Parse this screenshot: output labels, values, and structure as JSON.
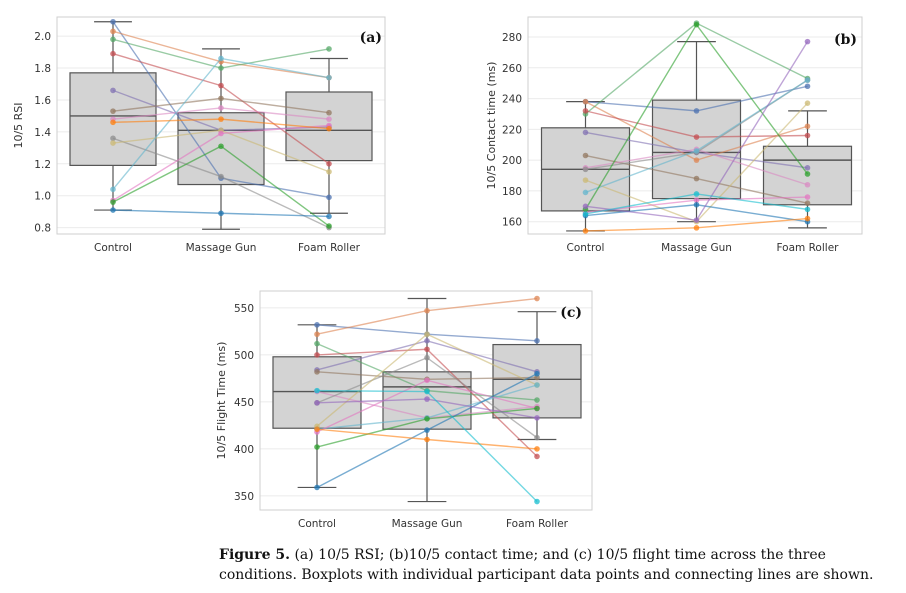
{
  "caption": {
    "label": "Figure 5.",
    "text": "(a) 10/5 RSI; (b)10/5 contact time; and (c) 10/5 flight time across the three conditions. Boxplots with individual participant data points and connecting lines are shown."
  },
  "chart_data": [
    {
      "type": "box",
      "panel": "(a)",
      "ylabel": "10/5 RSI",
      "categories": [
        "Control",
        "Massage Gun",
        "Foam Roller"
      ],
      "ylim": [
        0.76,
        2.12
      ],
      "yticks": [
        0.8,
        1.0,
        1.2,
        1.4,
        1.6,
        1.8,
        2.0
      ],
      "boxes": [
        {
          "q1": 1.19,
          "median": 1.5,
          "q3": 1.77,
          "whislo": 0.91,
          "whishi": 2.09
        },
        {
          "q1": 1.07,
          "median": 1.41,
          "q3": 1.52,
          "whislo": 0.79,
          "whishi": 1.92
        },
        {
          "q1": 1.22,
          "median": 1.41,
          "q3": 1.65,
          "whislo": 0.89,
          "whishi": 1.86
        }
      ],
      "participants": [
        [
          2.09,
          1.11,
          0.99
        ],
        [
          2.03,
          1.84,
          1.74
        ],
        [
          1.98,
          1.8,
          1.92
        ],
        [
          1.89,
          1.69,
          1.2
        ],
        [
          1.66,
          1.41,
          1.43
        ],
        [
          1.53,
          1.61,
          1.52
        ],
        [
          1.48,
          1.55,
          1.48
        ],
        [
          1.36,
          1.12,
          0.8
        ],
        [
          1.33,
          1.41,
          1.15
        ],
        [
          1.04,
          1.86,
          1.74
        ],
        [
          0.97,
          1.39,
          1.44
        ],
        [
          0.96,
          1.31,
          0.81
        ],
        [
          0.91,
          0.89,
          0.87
        ],
        [
          1.46,
          1.48,
          1.42
        ]
      ]
    },
    {
      "type": "box",
      "panel": "(b)",
      "ylabel": "10/5 Contact time (ms)",
      "categories": [
        "Control",
        "Massage Gun",
        "Foam Roller"
      ],
      "ylim": [
        152,
        293
      ],
      "yticks": [
        160,
        180,
        200,
        220,
        240,
        260,
        280
      ],
      "boxes": [
        {
          "q1": 167,
          "median": 194,
          "q3": 221,
          "whislo": 154,
          "whishi": 238
        },
        {
          "q1": 175,
          "median": 205,
          "q3": 239,
          "whislo": 160,
          "whishi": 277
        },
        {
          "q1": 171,
          "median": 200,
          "q3": 209,
          "whislo": 156,
          "whishi": 232
        }
      ],
      "participants": [
        [
          238,
          232,
          248
        ],
        [
          238,
          200,
          222
        ],
        [
          230,
          289,
          253
        ],
        [
          232,
          215,
          216
        ],
        [
          218,
          205,
          195
        ],
        [
          203,
          188,
          172
        ],
        [
          195,
          207,
          184
        ],
        [
          194,
          205,
          252
        ],
        [
          187,
          160,
          237
        ],
        [
          179,
          206,
          252
        ],
        [
          166,
          174,
          176
        ],
        [
          168,
          288,
          191
        ],
        [
          164,
          171,
          160
        ],
        [
          154,
          156,
          162
        ],
        [
          170,
          161,
          277
        ],
        [
          165,
          178,
          168
        ]
      ]
    },
    {
      "type": "box",
      "panel": "(c)",
      "ylabel": "10/5 Flight Time (ms)",
      "categories": [
        "Control",
        "Massage Gun",
        "Foam Roller"
      ],
      "ylim": [
        335,
        568
      ],
      "yticks": [
        350,
        400,
        450,
        500,
        550
      ],
      "boxes": [
        {
          "q1": 422,
          "median": 461,
          "q3": 498,
          "whislo": 359,
          "whishi": 532
        },
        {
          "q1": 421,
          "median": 466,
          "q3": 482,
          "whislo": 344,
          "whishi": 560
        },
        {
          "q1": 433,
          "median": 474,
          "q3": 511,
          "whislo": 410,
          "whishi": 546
        }
      ],
      "participants": [
        [
          532,
          522,
          515
        ],
        [
          522,
          547,
          560
        ],
        [
          512,
          462,
          452
        ],
        [
          500,
          506,
          392
        ],
        [
          484,
          515,
          482
        ],
        [
          482,
          474,
          476
        ],
        [
          461,
          433,
          445
        ],
        [
          449,
          497,
          412
        ],
        [
          424,
          522,
          468
        ],
        [
          421,
          433,
          468
        ],
        [
          418,
          473,
          443
        ],
        [
          402,
          432,
          443
        ],
        [
          359,
          420,
          480
        ],
        [
          421,
          410,
          400
        ],
        [
          449,
          453,
          433
        ],
        [
          462,
          461,
          344
        ]
      ]
    }
  ]
}
